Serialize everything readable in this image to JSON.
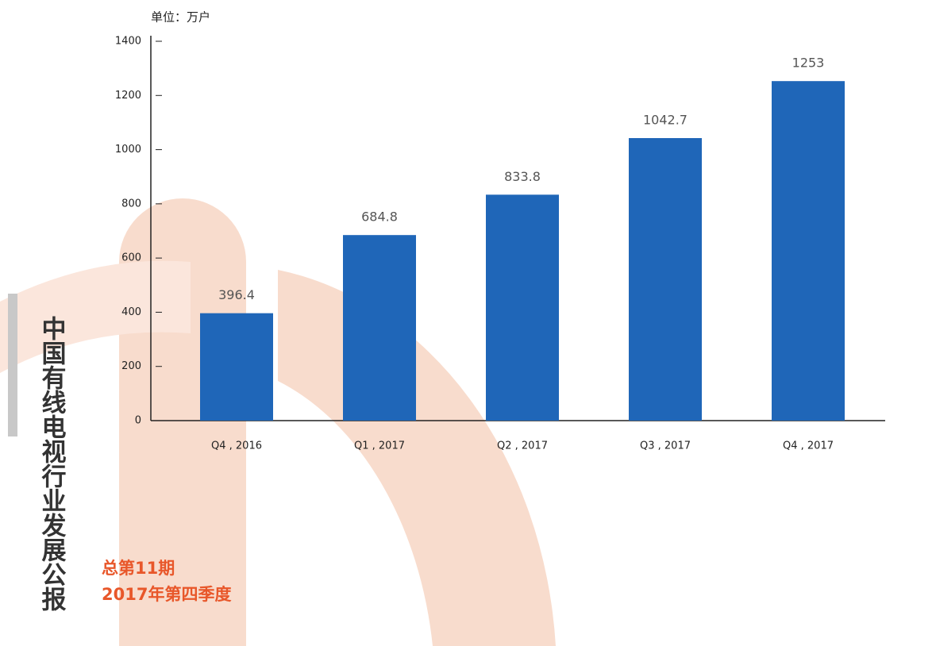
{
  "chart_data": {
    "type": "bar",
    "y_label": "单位：万户",
    "categories": [
      "Q4 , 2016",
      "Q1 , 2017",
      "Q2 , 2017",
      "Q3 , 2017",
      "Q4 , 2017"
    ],
    "values": [
      396.4,
      684.8,
      833.8,
      1042.7,
      1253
    ],
    "color": "#1f66b8",
    "ylim": [
      0,
      1400
    ],
    "yticks": [
      0,
      200,
      400,
      600,
      800,
      1000,
      1200,
      1400
    ],
    "annotations": [
      "中国有线电视行业发展公报",
      "总第11期",
      "2017年第四季度"
    ]
  }
}
